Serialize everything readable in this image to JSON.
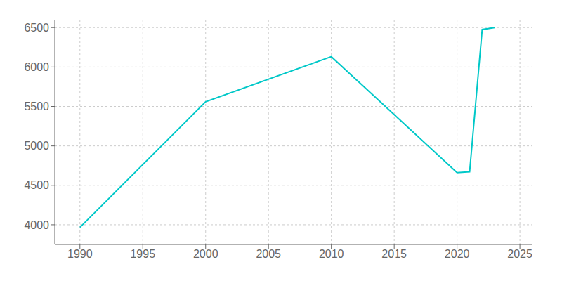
{
  "chart_data": {
    "type": "line",
    "x": [
      1990,
      2000,
      2010,
      2020,
      2021,
      2022,
      2023
    ],
    "values": [
      3967,
      5559,
      6131,
      4660,
      4672,
      6476,
      6500
    ],
    "color": "#00c8c8",
    "xlim": [
      1988,
      2026
    ],
    "ylim": [
      3750,
      6600
    ],
    "xticks": [
      1990,
      1995,
      2000,
      2005,
      2010,
      2015,
      2020,
      2025
    ],
    "yticks": [
      4000,
      4500,
      5000,
      5500,
      6000,
      6500
    ],
    "grid": true
  }
}
